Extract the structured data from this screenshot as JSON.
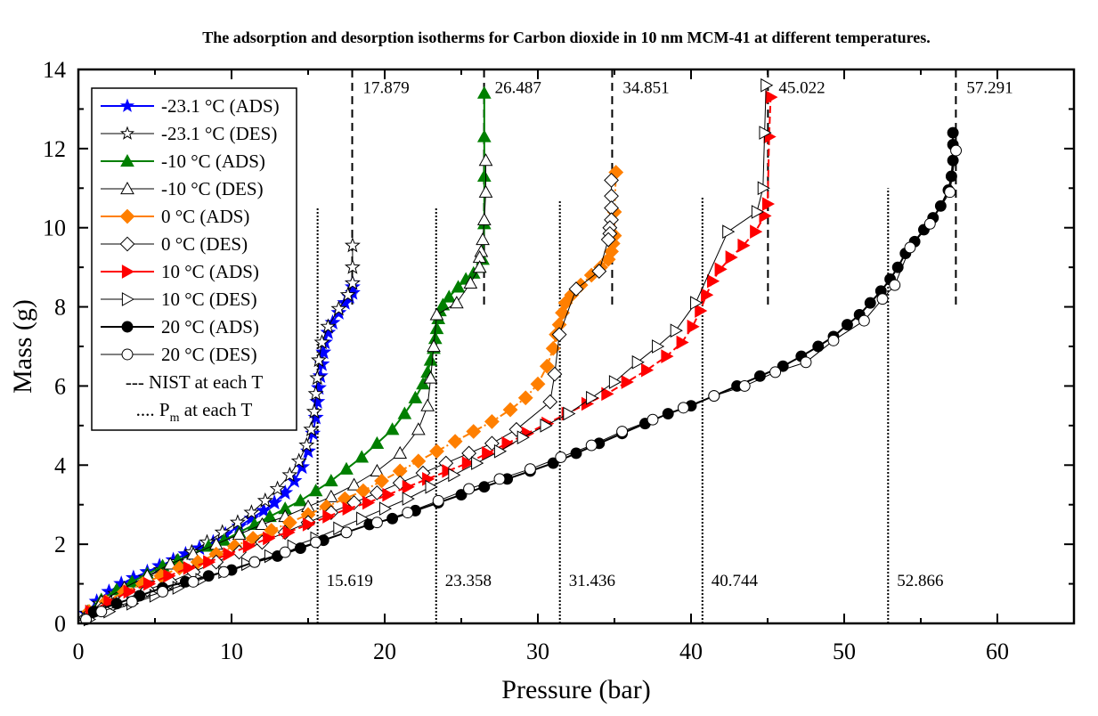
{
  "chart_data": {
    "type": "scatter",
    "title": "The adsorption and desorption isotherms for Carbon dioxide in 10 nm MCM-41 at different temperatures.",
    "xlabel": "Pressure (bar)",
    "ylabel": "Mass (g)",
    "xlim": [
      0,
      65
    ],
    "ylim": [
      0,
      14
    ],
    "xticks": [
      0,
      10,
      20,
      30,
      40,
      50,
      60
    ],
    "yticks": [
      0,
      2,
      4,
      6,
      8,
      10,
      12,
      14
    ],
    "xticks_minor": [
      5,
      15,
      25,
      35,
      45,
      55,
      65
    ],
    "yticks_minor": [
      1,
      3,
      5,
      7,
      9,
      11,
      13
    ],
    "grid": false,
    "legend_position": "top-left",
    "series": [
      {
        "name": "-23.1 °C (ADS)",
        "label": "-23.1 °C (ADS)",
        "color": "#0000ff",
        "marker": "star",
        "filled": true,
        "line": "solid",
        "x": [
          0.5,
          1.2,
          2.0,
          2.8,
          3.6,
          4.5,
          5.3,
          6.2,
          7.0,
          7.9,
          8.8,
          9.6,
          10.5,
          11.3,
          12.1,
          12.8,
          13.5,
          14.1,
          14.6,
          15.0,
          15.3,
          15.5,
          15.6,
          15.7,
          15.8,
          15.9,
          16.0,
          16.1,
          16.3,
          16.6,
          17.0,
          17.4,
          17.7,
          17.9,
          17.9,
          17.9
        ],
        "y": [
          0.25,
          0.55,
          0.8,
          1.0,
          1.15,
          1.3,
          1.45,
          1.6,
          1.75,
          1.9,
          2.05,
          2.25,
          2.45,
          2.65,
          2.85,
          3.05,
          3.3,
          3.6,
          3.95,
          4.35,
          4.8,
          5.2,
          5.6,
          5.95,
          6.25,
          6.55,
          6.85,
          7.1,
          7.35,
          7.6,
          7.85,
          8.1,
          8.25,
          8.35,
          8.5,
          8.6
        ]
      },
      {
        "name": "-23.1 °C (DES)",
        "label": "-23.1 °C (DES)",
        "color": "#000000",
        "marker": "star",
        "filled": false,
        "line": "solid",
        "x": [
          17.9,
          17.9,
          17.9,
          17.6,
          17.0,
          16.3,
          15.9,
          15.7,
          15.6,
          15.5,
          15.4,
          15.2,
          14.9,
          14.4,
          13.8,
          13.0,
          12.2,
          11.3,
          10.4,
          9.4,
          8.4,
          7.4,
          6.4,
          5.4,
          4.4,
          3.4,
          2.4,
          1.4,
          0.6
        ],
        "y": [
          9.55,
          9.0,
          8.6,
          8.3,
          7.95,
          7.5,
          7.1,
          6.65,
          6.2,
          5.8,
          5.35,
          4.9,
          4.5,
          4.1,
          3.75,
          3.4,
          3.1,
          2.8,
          2.55,
          2.3,
          2.05,
          1.8,
          1.55,
          1.35,
          1.15,
          0.95,
          0.75,
          0.5,
          0.25
        ]
      },
      {
        "name": "-10 °C (ADS)",
        "label": "-10 °C (ADS)",
        "color": "#007f00",
        "marker": "triangle-up",
        "filled": true,
        "line": "solid",
        "x": [
          0.6,
          1.5,
          2.5,
          3.5,
          4.5,
          5.5,
          6.5,
          7.5,
          8.5,
          9.5,
          10.5,
          11.5,
          12.5,
          13.5,
          14.5,
          15.5,
          16.5,
          17.5,
          18.5,
          19.5,
          20.5,
          21.3,
          22.0,
          22.5,
          22.8,
          23.0,
          23.2,
          23.3,
          23.4,
          23.5,
          23.6,
          23.8,
          24.2,
          24.8,
          25.3,
          25.8,
          26.2,
          26.4,
          26.5,
          26.5,
          26.5,
          26.5
        ],
        "y": [
          0.3,
          0.6,
          0.85,
          1.05,
          1.25,
          1.45,
          1.6,
          1.75,
          1.95,
          2.1,
          2.3,
          2.5,
          2.7,
          2.9,
          3.1,
          3.35,
          3.6,
          3.9,
          4.2,
          4.55,
          4.9,
          5.3,
          5.7,
          6.05,
          6.35,
          6.65,
          6.95,
          7.2,
          7.45,
          7.7,
          7.9,
          8.05,
          8.25,
          8.5,
          8.7,
          8.85,
          9.0,
          9.2,
          10.1,
          11.3,
          12.3,
          13.4
        ]
      },
      {
        "name": "-10 °C (DES)",
        "label": "-10 °C (DES)",
        "color": "#000000",
        "marker": "triangle-up",
        "filled": false,
        "line": "solid",
        "x": [
          26.6,
          26.6,
          26.5,
          26.4,
          26.3,
          26.2,
          26.2,
          25.6,
          24.7,
          23.4,
          23.2,
          23.0,
          22.8,
          22.2,
          21.0,
          19.5,
          18.0,
          16.5,
          15.0,
          13.5,
          12.0,
          10.5,
          9.0,
          7.5,
          6.0,
          4.5,
          3.0,
          1.5,
          0.5
        ],
        "y": [
          11.7,
          10.9,
          10.2,
          9.7,
          9.4,
          9.25,
          9.0,
          8.6,
          8.1,
          7.8,
          7.0,
          6.2,
          5.5,
          4.9,
          4.3,
          3.85,
          3.5,
          3.2,
          2.95,
          2.7,
          2.5,
          2.25,
          2.0,
          1.75,
          1.5,
          1.2,
          0.9,
          0.55,
          0.2
        ]
      },
      {
        "name": "0 °C (ADS)",
        "label": "0 °C (ADS)",
        "color": "#ff7f00",
        "marker": "diamond",
        "filled": true,
        "line": "dash-dot",
        "x": [
          0.7,
          1.8,
          3.0,
          4.2,
          5.4,
          6.6,
          7.8,
          9.0,
          10.2,
          11.4,
          12.6,
          13.8,
          15.0,
          16.2,
          17.4,
          18.6,
          19.8,
          21.0,
          22.2,
          23.4,
          24.6,
          25.8,
          27.0,
          28.2,
          29.2,
          30.0,
          30.6,
          31.0,
          31.2,
          31.4,
          31.6,
          31.8,
          32.2,
          32.8,
          33.5,
          34.1,
          34.6,
          34.8,
          34.9,
          35.0,
          35.0,
          35.1
        ],
        "y": [
          0.3,
          0.55,
          0.8,
          1.0,
          1.2,
          1.4,
          1.55,
          1.75,
          1.95,
          2.15,
          2.35,
          2.55,
          2.75,
          2.95,
          3.15,
          3.35,
          3.6,
          3.85,
          4.1,
          4.35,
          4.6,
          4.85,
          5.1,
          5.4,
          5.7,
          6.05,
          6.5,
          6.95,
          7.3,
          7.55,
          7.85,
          8.1,
          8.3,
          8.55,
          8.8,
          9.0,
          9.2,
          9.4,
          9.6,
          9.8,
          10.4,
          11.4
        ]
      },
      {
        "name": "0 °C (DES)",
        "label": "0 °C (DES)",
        "color": "#000000",
        "marker": "diamond",
        "filled": false,
        "line": "solid",
        "x": [
          34.8,
          34.8,
          34.8,
          34.8,
          34.7,
          34.7,
          34.6,
          34.0,
          32.5,
          31.4,
          31.1,
          30.8,
          28.6,
          27.0,
          25.5,
          24.0,
          22.5,
          21.0,
          19.5,
          18.0,
          16.5,
          15.0,
          13.5,
          12.0,
          10.5,
          9.0,
          7.5,
          6.0,
          4.5,
          3.0,
          1.5,
          0.5
        ],
        "y": [
          11.2,
          10.8,
          10.5,
          10.2,
          10.0,
          9.85,
          9.7,
          8.9,
          8.45,
          7.3,
          6.3,
          5.6,
          4.9,
          4.55,
          4.3,
          4.05,
          3.8,
          3.55,
          3.3,
          3.05,
          2.8,
          2.55,
          2.3,
          2.05,
          1.8,
          1.55,
          1.3,
          1.05,
          0.85,
          0.6,
          0.35,
          0.15
        ]
      },
      {
        "name": "10 °C (ADS)",
        "label": "10 °C (ADS)",
        "color": "#ff0000",
        "marker": "triangle-right",
        "filled": true,
        "line": "dash",
        "x": [
          0.8,
          2.0,
          3.3,
          4.6,
          5.9,
          7.2,
          8.5,
          9.8,
          11.1,
          12.4,
          13.7,
          15.0,
          16.3,
          17.6,
          18.9,
          20.2,
          21.5,
          22.8,
          24.1,
          25.4,
          26.7,
          28.0,
          29.3,
          30.6,
          31.9,
          33.2,
          34.5,
          35.8,
          37.1,
          38.4,
          39.4,
          40.1,
          40.6,
          41.0,
          41.4,
          41.9,
          42.6,
          43.4,
          44.2,
          44.8,
          45.0,
          45.1,
          45.2
        ],
        "y": [
          0.3,
          0.55,
          0.8,
          1.0,
          1.2,
          1.4,
          1.55,
          1.75,
          1.95,
          2.15,
          2.3,
          2.5,
          2.7,
          2.9,
          3.05,
          3.25,
          3.45,
          3.65,
          3.85,
          4.05,
          4.3,
          4.55,
          4.8,
          5.05,
          5.3,
          5.55,
          5.8,
          6.1,
          6.4,
          6.75,
          7.1,
          7.5,
          7.9,
          8.3,
          8.65,
          8.95,
          9.25,
          9.55,
          9.9,
          10.3,
          10.6,
          12.3,
          13.3
        ]
      },
      {
        "name": "10 °C (DES)",
        "label": "10 °C (DES)",
        "color": "#000000",
        "marker": "triangle-right",
        "filled": false,
        "line": "solid",
        "x": [
          44.9,
          44.8,
          44.7,
          44.3,
          42.4,
          40.3,
          39.0,
          37.8,
          36.5,
          35.0,
          33.5,
          32.0,
          30.5,
          29.0,
          27.5,
          26.0,
          24.5,
          23.0,
          21.5,
          20.0,
          18.5,
          17.0,
          15.5,
          14.0,
          12.5,
          11.0,
          9.5,
          8.0,
          6.5,
          5.0,
          3.5,
          2.0,
          0.7
        ],
        "y": [
          13.6,
          12.4,
          11.0,
          10.4,
          9.9,
          8.1,
          7.4,
          7.0,
          6.6,
          6.1,
          5.7,
          5.3,
          5.0,
          4.7,
          4.35,
          4.05,
          3.75,
          3.45,
          3.15,
          2.9,
          2.65,
          2.4,
          2.15,
          1.95,
          1.7,
          1.5,
          1.3,
          1.1,
          0.9,
          0.7,
          0.5,
          0.3,
          0.1
        ]
      },
      {
        "name": "20 °C (ADS)",
        "label": "20 °C (ADS)",
        "color": "#000000",
        "marker": "circle",
        "filled": true,
        "line": "solid",
        "x": [
          1.0,
          2.5,
          4.0,
          5.5,
          7.0,
          8.5,
          10.0,
          11.5,
          13.0,
          14.5,
          16.0,
          17.5,
          19.0,
          20.5,
          22.0,
          23.5,
          25.0,
          26.5,
          28.0,
          29.5,
          31.0,
          32.5,
          34.0,
          35.5,
          37.0,
          38.5,
          40.0,
          41.5,
          43.0,
          44.5,
          46.0,
          47.2,
          48.3,
          49.3,
          50.2,
          51.0,
          51.7,
          52.4,
          53.0,
          53.5,
          54.0,
          54.6,
          55.2,
          55.8,
          56.3,
          56.8,
          57.0,
          57.1,
          57.1,
          57.1
        ],
        "y": [
          0.3,
          0.5,
          0.7,
          0.9,
          1.05,
          1.2,
          1.35,
          1.55,
          1.7,
          1.9,
          2.1,
          2.3,
          2.5,
          2.65,
          2.85,
          3.05,
          3.25,
          3.45,
          3.65,
          3.85,
          4.05,
          4.3,
          4.55,
          4.8,
          5.05,
          5.3,
          5.5,
          5.75,
          6.0,
          6.25,
          6.5,
          6.75,
          7.0,
          7.25,
          7.55,
          7.8,
          8.1,
          8.4,
          8.7,
          9.0,
          9.35,
          9.65,
          9.95,
          10.25,
          10.55,
          10.95,
          11.3,
          11.7,
          12.1,
          12.4
        ]
      },
      {
        "name": "20 °C (DES)",
        "label": "20 °C (DES)",
        "color": "#000000",
        "marker": "circle",
        "filled": false,
        "line": "solid",
        "x": [
          57.3,
          56.9,
          55.6,
          54.3,
          53.3,
          52.5,
          51.3,
          49.3,
          47.5,
          45.5,
          43.5,
          41.5,
          39.5,
          37.5,
          35.5,
          33.5,
          31.5,
          29.5,
          27.5,
          25.5,
          23.5,
          21.5,
          19.5,
          17.5,
          15.5,
          13.5,
          11.5,
          9.5,
          7.5,
          5.5,
          3.5,
          1.5,
          0.5
        ],
        "y": [
          11.95,
          10.9,
          10.1,
          9.5,
          8.55,
          8.2,
          7.65,
          7.15,
          6.6,
          6.35,
          6.0,
          5.75,
          5.45,
          5.15,
          4.85,
          4.5,
          4.2,
          3.9,
          3.65,
          3.4,
          3.1,
          2.8,
          2.55,
          2.3,
          2.05,
          1.8,
          1.55,
          1.3,
          1.05,
          0.8,
          0.55,
          0.3,
          0.1
        ]
      }
    ],
    "reference_lines": {
      "nist": {
        "label": "--- NIST at each T",
        "style": "dashed",
        "x": [
          17.879,
          26.487,
          34.851,
          45.022,
          57.291
        ],
        "y_range": [
          8.0,
          14.0
        ],
        "labels": [
          "17.879",
          "26.487",
          "34.851",
          "45.022",
          "57.291"
        ]
      },
      "pm": {
        "label_prefix": "....",
        "label_main": "P",
        "label_sub": "m",
        "label_suffix": " at each T",
        "style": "dotted",
        "x": [
          15.619,
          23.358,
          31.436,
          40.744,
          52.866
        ],
        "y_tops": [
          10.5,
          10.5,
          10.7,
          10.8,
          11.0
        ],
        "labels": [
          "15.619",
          "23.358",
          "31.436",
          "40.744",
          "52.866"
        ]
      }
    },
    "annotations": {
      "nist_label_y": 13.4,
      "pm_label_y": 0.95
    }
  }
}
